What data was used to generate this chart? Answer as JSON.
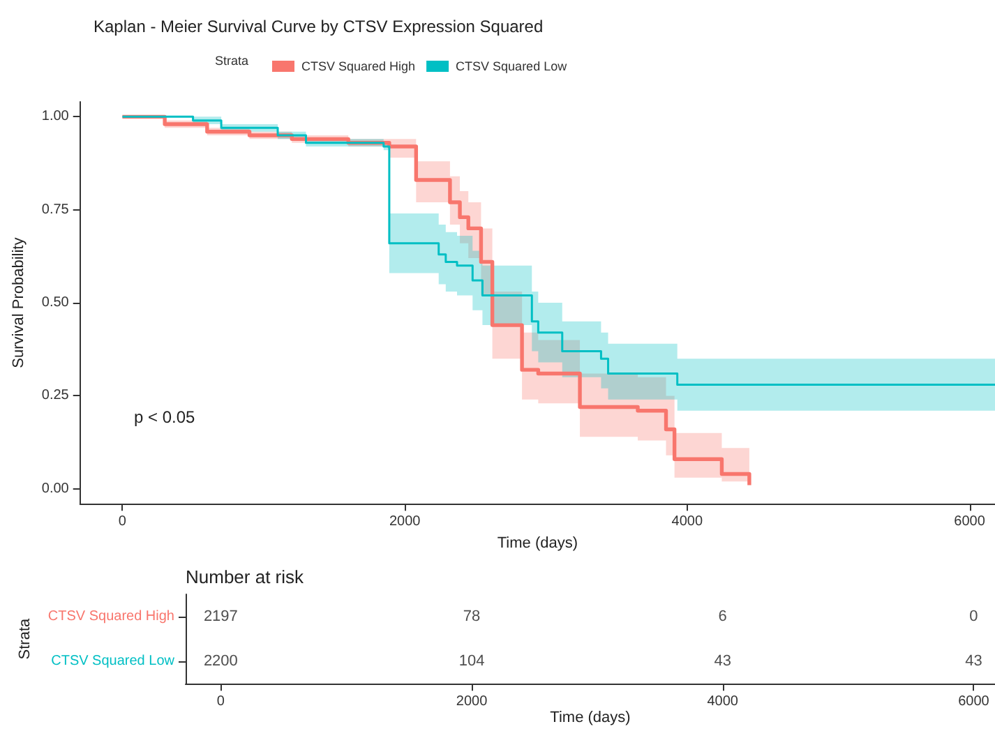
{
  "chart_data": [
    {
      "type": "step",
      "title": "Kaplan - Meier Survival Curve by CTSV Expression Squared",
      "legend_title": "Strata",
      "xlabel": "Time (days)",
      "ylabel": "Survival Probability",
      "annotations": [
        "p < 0.05"
      ],
      "legend": "top",
      "grid": false,
      "marker": "none",
      "line_style": "solid",
      "xlim": [
        -300,
        6180
      ],
      "ylim": [
        -0.04,
        1.04
      ],
      "xticks": [
        0,
        2000,
        4000,
        6000
      ],
      "yticks": [
        {
          "value": 0,
          "label": "0.00"
        },
        {
          "value": 0.25,
          "label": "0.25"
        },
        {
          "value": 0.5,
          "label": "0.50"
        },
        {
          "value": 0.75,
          "label": "0.75"
        },
        {
          "value": 1,
          "label": "1.00"
        }
      ],
      "series": [
        {
          "name": "CTSV Squared High",
          "color": "#f8766d",
          "x": [
            0,
            300,
            600,
            900,
            1200,
            1600,
            1890,
            2080,
            2320,
            2390,
            2450,
            2540,
            2620,
            2830,
            2945,
            3240,
            3650,
            3850,
            3910,
            4245,
            4440
          ],
          "values": [
            1.0,
            0.98,
            0.96,
            0.95,
            0.94,
            0.93,
            0.92,
            0.83,
            0.77,
            0.73,
            0.7,
            0.61,
            0.44,
            0.32,
            0.31,
            0.22,
            0.21,
            0.16,
            0.08,
            0.04,
            0.01
          ],
          "lower": [
            1.0,
            0.97,
            0.95,
            0.94,
            0.93,
            0.92,
            0.89,
            0.77,
            0.71,
            0.66,
            0.62,
            0.52,
            0.35,
            0.24,
            0.23,
            0.14,
            0.13,
            0.09,
            0.03,
            0.02,
            0.0
          ],
          "upper": [
            1.0,
            0.99,
            0.97,
            0.96,
            0.95,
            0.94,
            0.94,
            0.88,
            0.84,
            0.8,
            0.77,
            0.7,
            0.53,
            0.42,
            0.4,
            0.31,
            0.3,
            0.25,
            0.15,
            0.11,
            0.05
          ]
        },
        {
          "name": "CTSV Squared Low",
          "color": "#00bfc4",
          "x": [
            0,
            500,
            700,
            1100,
            1300,
            1850,
            1890,
            2240,
            2290,
            2370,
            2480,
            2550,
            2900,
            2945,
            3115,
            3390,
            3440,
            3930,
            6180
          ],
          "values": [
            1.0,
            0.99,
            0.97,
            0.95,
            0.93,
            0.92,
            0.66,
            0.63,
            0.61,
            0.6,
            0.56,
            0.52,
            0.45,
            0.42,
            0.37,
            0.35,
            0.31,
            0.28,
            0.28
          ],
          "lower": [
            1.0,
            0.98,
            0.96,
            0.94,
            0.92,
            0.91,
            0.58,
            0.55,
            0.53,
            0.52,
            0.48,
            0.44,
            0.37,
            0.34,
            0.3,
            0.27,
            0.24,
            0.21,
            0.21
          ],
          "upper": [
            1.0,
            1.0,
            0.98,
            0.96,
            0.94,
            0.93,
            0.74,
            0.71,
            0.69,
            0.68,
            0.64,
            0.6,
            0.53,
            0.5,
            0.45,
            0.42,
            0.39,
            0.35,
            0.35
          ]
        }
      ]
    },
    {
      "type": "heatmap",
      "title": "Number at risk",
      "xlabel": "Time (days)",
      "ylabel": "Strata",
      "x": [
        0,
        2000,
        4000,
        6000
      ],
      "xlim": [
        -280,
        6170
      ],
      "xticks": [
        0,
        2000,
        4000,
        6000
      ],
      "y_categories": [
        "CTSV Squared High",
        "CTSV Squared Low"
      ],
      "colors": [
        "#f8766d",
        "#00bfc4"
      ],
      "cells": [
        [
          2197,
          78,
          6,
          0
        ],
        [
          2200,
          104,
          43,
          43
        ]
      ],
      "data_labels": true
    }
  ]
}
